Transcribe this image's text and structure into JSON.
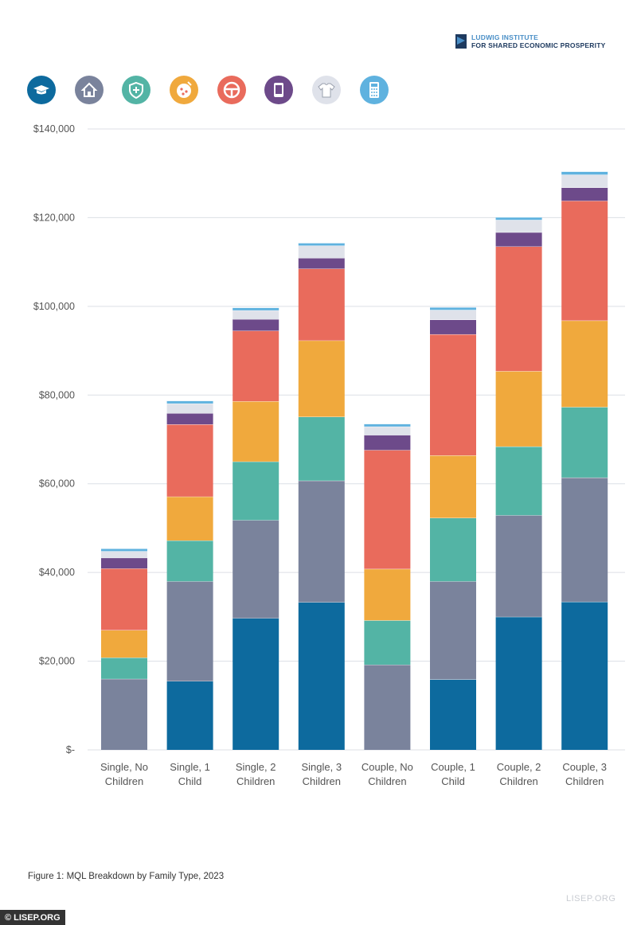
{
  "logo": {
    "line1": "LUDWIG INSTITUTE",
    "line2": "FOR SHARED ECONOMIC PROSPERITY"
  },
  "legend_icons": [
    {
      "name": "graduation-cap-icon",
      "color": "#0d6a9e"
    },
    {
      "name": "house-icon",
      "color": "#7a839c"
    },
    {
      "name": "health-shield-icon",
      "color": "#53b4a5"
    },
    {
      "name": "food-pizza-icon",
      "color": "#f0a93d"
    },
    {
      "name": "steering-wheel-icon",
      "color": "#e96b5c"
    },
    {
      "name": "phone-icon",
      "color": "#6d4a8a"
    },
    {
      "name": "shirt-icon",
      "color": "#dfe2ea"
    },
    {
      "name": "calculator-icon",
      "color": "#5fb2df"
    }
  ],
  "chart_data": {
    "type": "bar",
    "stacked": true,
    "categories": [
      [
        "Single, No",
        "Children"
      ],
      [
        "Single, 1",
        "Child"
      ],
      [
        "Single, 2",
        "Children"
      ],
      [
        "Single, 3",
        "Children"
      ],
      [
        "Couple, No",
        "Children"
      ],
      [
        "Couple, 1",
        "Child"
      ],
      [
        "Couple, 2",
        "Children"
      ],
      [
        "Couple, 3",
        "Children"
      ]
    ],
    "series": [
      {
        "color": "#0d6a9e",
        "values": [
          0,
          15500,
          29700,
          33300,
          0,
          15900,
          30000,
          33400
        ]
      },
      {
        "color": "#7a839c",
        "values": [
          16000,
          22500,
          22100,
          27400,
          19200,
          22100,
          22900,
          28000
        ]
      },
      {
        "color": "#53b4a5",
        "values": [
          4800,
          9200,
          13200,
          14400,
          10000,
          14300,
          15500,
          15900
        ]
      },
      {
        "color": "#f0a93d",
        "values": [
          6200,
          9900,
          13600,
          17200,
          11600,
          14100,
          17000,
          19500
        ]
      },
      {
        "color": "#e96b5c",
        "values": [
          13900,
          16300,
          15900,
          16200,
          26800,
          27300,
          28100,
          27000
        ]
      },
      {
        "color": "#6d4a8a",
        "values": [
          2400,
          2500,
          2600,
          2400,
          3400,
          3300,
          3200,
          3000
        ]
      },
      {
        "color": "#dfe2ea",
        "values": [
          1500,
          2200,
          2000,
          2800,
          1900,
          2200,
          2800,
          2900
        ]
      },
      {
        "color": "#5fb2df",
        "values": [
          600,
          600,
          600,
          600,
          600,
          600,
          600,
          700
        ]
      }
    ],
    "yticks": [
      "$140,000",
      "$120,000",
      "$100,000",
      "$80,000",
      "$60,000",
      "$40,000",
      "$20,000",
      "$-"
    ],
    "ylim": [
      0,
      140000
    ],
    "grid": true
  },
  "caption": "Figure 1: MQL Breakdown by Family Type, 2023",
  "site": "LISEP.ORG",
  "watermark": "© LISEP.ORG"
}
